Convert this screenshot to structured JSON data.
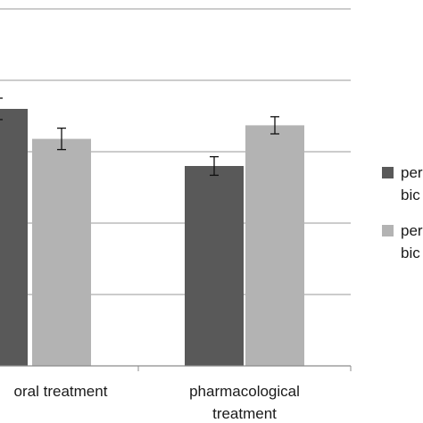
{
  "chart_data": {
    "type": "bar",
    "categories": [
      "oral treatment",
      "pharmacological treatment"
    ],
    "category_label_lines": [
      [
        "oral treatment"
      ],
      [
        "pharmacological",
        "treatment"
      ]
    ],
    "series": [
      {
        "name": "per bic",
        "legend_text_lines": [
          "per",
          "bic"
        ],
        "color": "#595959",
        "values": [
          3.6,
          2.8
        ],
        "errors": [
          0.15,
          0.13
        ]
      },
      {
        "name": "per bic",
        "legend_text_lines": [
          "per",
          "bic"
        ],
        "color": "#b3b3b3",
        "values": [
          3.18,
          3.37
        ],
        "errors": [
          0.15,
          0.12
        ]
      }
    ],
    "ylim": [
      0,
      5
    ],
    "grid": true,
    "gridline_values": [
      1,
      2,
      3,
      4,
      5
    ],
    "legend_position": "right",
    "title": "",
    "xlabel": "",
    "ylabel": ""
  }
}
